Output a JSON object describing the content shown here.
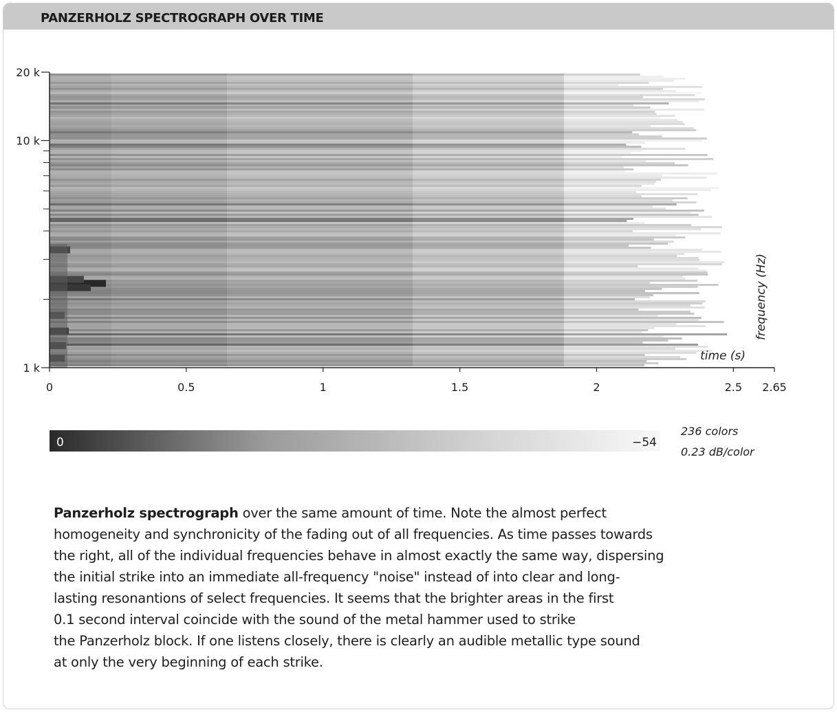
{
  "header": {
    "title": "PANZERHOLZ SPECTROGRAPH OVER TIME"
  },
  "chart_data": {
    "type": "heatmap",
    "title": "PANZERHOLZ SPECTROGRAPH OVER TIME",
    "xlabel": "time (s)",
    "ylabel": "frequency (Hz)",
    "x_ticks": [
      "0",
      "0.5",
      "1",
      "1.5",
      "2",
      "2.5",
      "2.65"
    ],
    "x_tick_values": [
      0,
      0.5,
      1,
      1.5,
      2,
      2.5,
      2.65
    ],
    "xlim": [
      0,
      2.65
    ],
    "y_scale": "log",
    "ylim": [
      1000,
      20000
    ],
    "y_ticks": [
      "20 k",
      "10 k",
      "1 k"
    ],
    "y_tick_values": [
      20000,
      10000,
      1000
    ],
    "y_minor_tick_values": [
      2000,
      3000,
      4000,
      5000,
      6000,
      7000,
      8000,
      9000
    ],
    "colorbar": {
      "min_label": "0",
      "max_label": "−54",
      "colors_label": "236 colors",
      "resolution_label": "0.23 dB/color",
      "range_db": [
        0,
        -54
      ],
      "colors": [
        "#2a2a2a",
        "#f8f8f8"
      ]
    },
    "grid": false
  },
  "caption": {
    "bold": "Panzerholz spectrograph",
    "lines": [
      " over the same amount of time. Note the almost perfect",
      "homogeneity and synchronicity of the fading out of all frequencies. As time passes towards",
      "the right, all of the individual frequencies behave in almost exactly the same way, dispersing",
      "the initial strike into an immediate all-frequency  \"noise\" instead of into clear and long-",
      "lasting resonantions of select frequencies. It seems that the brighter areas in the first",
      "0.1 second interval coincide with the sound of the metal hammer used to strike",
      "the Panzerholz block. If one listens closely, there is clearly an audible metallic type sound",
      "at only the very beginning of each strike."
    ]
  }
}
